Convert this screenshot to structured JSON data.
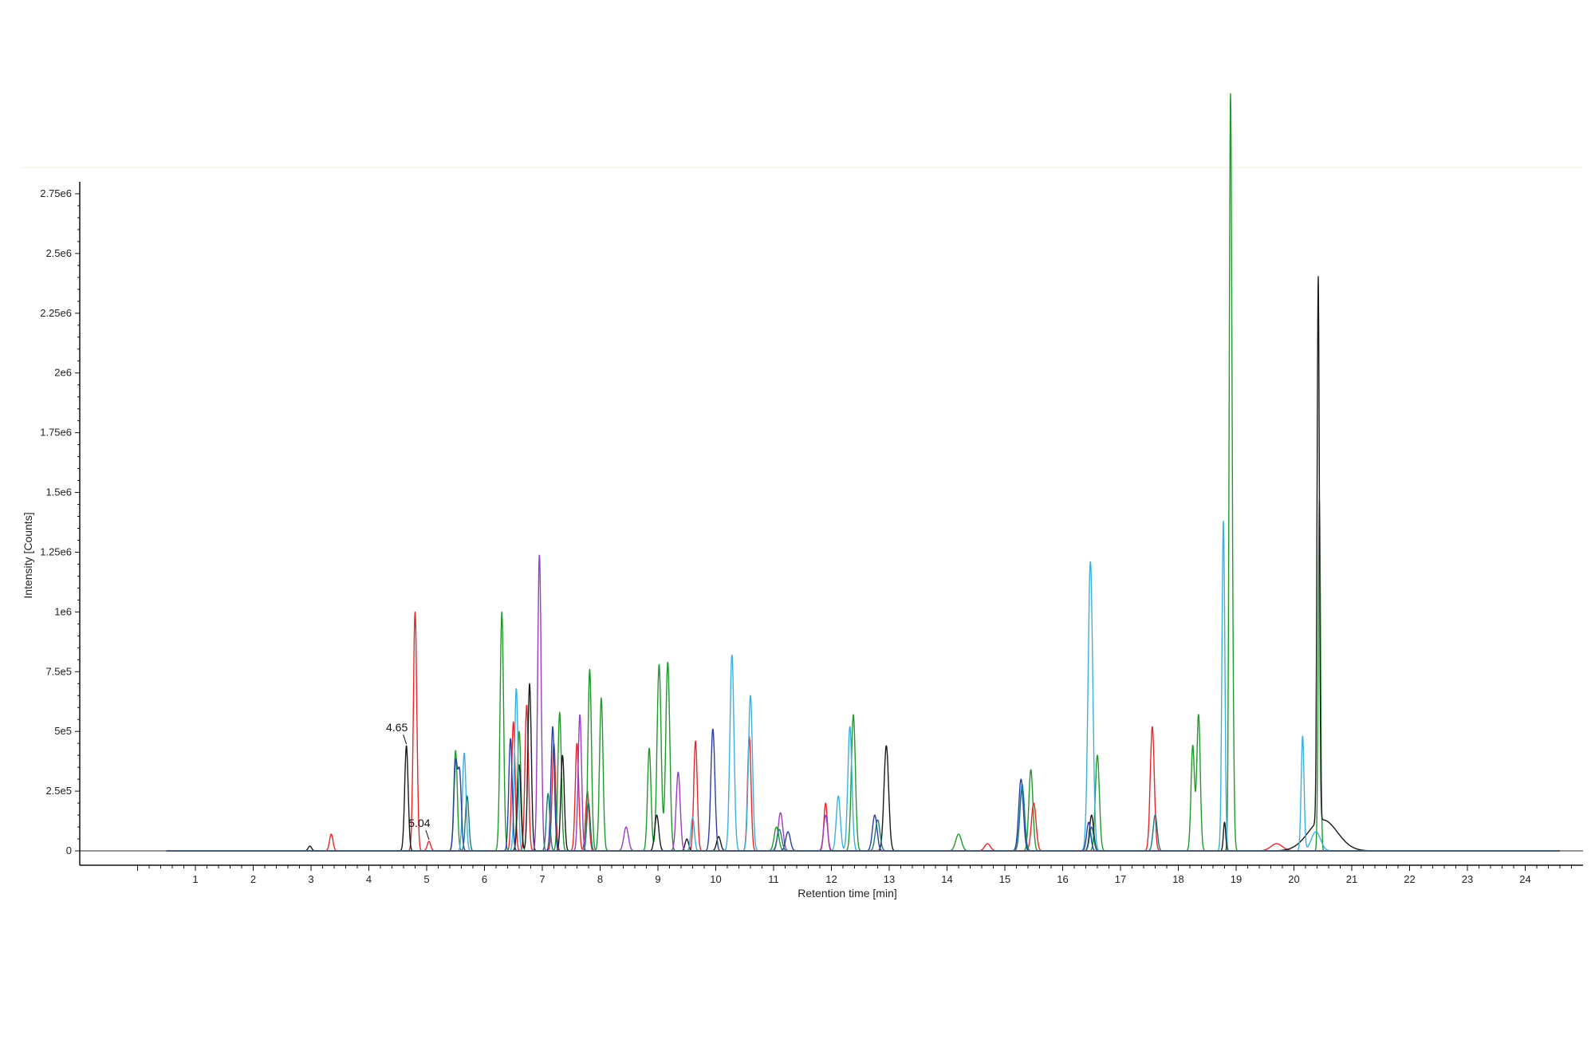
{
  "chart_data": {
    "type": "line",
    "xlabel": "Retention time [min]",
    "ylabel": "Intensity [Counts]",
    "xlim": [
      -1,
      25
    ],
    "ylim": [
      -60000,
      2800000
    ],
    "x_ticks": [
      1,
      2,
      3,
      4,
      5,
      6,
      7,
      8,
      9,
      10,
      11,
      12,
      13,
      14,
      15,
      16,
      17,
      18,
      19,
      20,
      21,
      22,
      23,
      24
    ],
    "x_tick_labels": [
      "1",
      "2",
      "3",
      "4",
      "5",
      "6",
      "7",
      "8",
      "9",
      "10",
      "11",
      "12",
      "13",
      "14",
      "15",
      "16",
      "17",
      "18",
      "19",
      "20",
      "21",
      "22",
      "23",
      "24"
    ],
    "y_ticks": [
      0,
      250000,
      500000,
      750000,
      1000000,
      1250000,
      1500000,
      1750000,
      2000000,
      2250000,
      2500000,
      2750000
    ],
    "y_tick_labels": [
      "0",
      "2.5e5",
      "5e5",
      "7.5e5",
      "1e6",
      "1.25e6",
      "1.5e6",
      "1.75e6",
      "2e6",
      "2.25e6",
      "2.5e6",
      "2.75e6"
    ],
    "grid": false,
    "legend": "none",
    "annotations": [
      {
        "text": "4.65",
        "x": 4.65,
        "y": 440000
      },
      {
        "text": "5.04",
        "x": 5.04,
        "y": 40000
      }
    ],
    "series": [
      {
        "color": "#e8262a",
        "peaks": [
          [
            3.35,
            70000,
            0.03
          ],
          [
            4.8,
            1000000,
            0.03
          ],
          [
            5.04,
            40000,
            0.03
          ],
          [
            6.5,
            540000,
            0.03
          ],
          [
            6.73,
            610000,
            0.03
          ],
          [
            7.2,
            450000,
            0.03
          ],
          [
            7.6,
            450000,
            0.03
          ],
          [
            7.78,
            250000,
            0.03
          ],
          [
            9.65,
            460000,
            0.03
          ],
          [
            10.58,
            480000,
            0.03
          ],
          [
            11.9,
            200000,
            0.03
          ],
          [
            14.7,
            30000,
            0.05
          ],
          [
            15.5,
            200000,
            0.04
          ],
          [
            17.55,
            520000,
            0.035
          ],
          [
            19.7,
            30000,
            0.1
          ]
        ]
      },
      {
        "color": "#1f9a2a",
        "peaks": [
          [
            5.5,
            420000,
            0.03
          ],
          [
            6.3,
            1000000,
            0.03
          ],
          [
            6.6,
            500000,
            0.03
          ],
          [
            7.3,
            580000,
            0.03
          ],
          [
            7.82,
            760000,
            0.03
          ],
          [
            8.02,
            640000,
            0.03
          ],
          [
            8.85,
            430000,
            0.03
          ],
          [
            9.02,
            780000,
            0.035
          ],
          [
            9.17,
            790000,
            0.035
          ],
          [
            11.05,
            100000,
            0.04
          ],
          [
            12.38,
            570000,
            0.035
          ],
          [
            14.2,
            70000,
            0.05
          ],
          [
            15.45,
            340000,
            0.035
          ],
          [
            16.6,
            400000,
            0.035
          ],
          [
            18.25,
            440000,
            0.03
          ],
          [
            18.35,
            570000,
            0.03
          ],
          [
            18.9,
            2730000,
            0.022
          ],
          [
            18.93,
            830000,
            0.025
          ],
          [
            20.44,
            1470000,
            0.02
          ]
        ]
      },
      {
        "color": "#1a1a1a",
        "peaks": [
          [
            2.98,
            20000,
            0.03
          ],
          [
            4.65,
            440000,
            0.03
          ],
          [
            6.6,
            360000,
            0.03
          ],
          [
            6.78,
            700000,
            0.03
          ],
          [
            7.35,
            400000,
            0.03
          ],
          [
            8.98,
            150000,
            0.035
          ],
          [
            9.5,
            50000,
            0.03
          ],
          [
            10.05,
            60000,
            0.035
          ],
          [
            12.95,
            440000,
            0.04
          ],
          [
            16.5,
            150000,
            0.035
          ],
          [
            18.8,
            120000,
            0.02
          ],
          [
            20.42,
            2280000,
            0.02
          ],
          [
            20.5,
            130000,
            0.25
          ]
        ]
      },
      {
        "color": "#3bb0e0",
        "peaks": [
          [
            5.65,
            410000,
            0.03
          ],
          [
            6.55,
            680000,
            0.03
          ],
          [
            9.6,
            140000,
            0.03
          ],
          [
            10.28,
            820000,
            0.035
          ],
          [
            10.6,
            650000,
            0.035
          ],
          [
            12.12,
            230000,
            0.035
          ],
          [
            12.32,
            520000,
            0.035
          ],
          [
            15.3,
            280000,
            0.04
          ],
          [
            16.48,
            1210000,
            0.04
          ],
          [
            18.78,
            1380000,
            0.025
          ],
          [
            20.15,
            480000,
            0.025
          ],
          [
            20.38,
            80000,
            0.08
          ]
        ]
      },
      {
        "color": "#9b3cc4",
        "peaks": [
          [
            6.95,
            1240000,
            0.03
          ],
          [
            7.65,
            570000,
            0.03
          ],
          [
            8.45,
            100000,
            0.04
          ],
          [
            9.35,
            330000,
            0.035
          ],
          [
            11.12,
            160000,
            0.04
          ],
          [
            11.9,
            150000,
            0.035
          ]
        ]
      },
      {
        "color": "#2c3ea8",
        "peaks": [
          [
            5.5,
            360000,
            0.03
          ],
          [
            5.57,
            320000,
            0.03
          ],
          [
            6.45,
            470000,
            0.03
          ],
          [
            7.18,
            520000,
            0.03
          ],
          [
            9.95,
            510000,
            0.035
          ],
          [
            11.25,
            80000,
            0.04
          ],
          [
            12.75,
            150000,
            0.04
          ],
          [
            15.28,
            300000,
            0.04
          ],
          [
            16.45,
            120000,
            0.035
          ]
        ]
      },
      {
        "color": "#1b7a7a",
        "peaks": [
          [
            5.7,
            230000,
            0.03
          ],
          [
            7.1,
            240000,
            0.03
          ],
          [
            7.8,
            200000,
            0.03
          ],
          [
            11.1,
            90000,
            0.04
          ],
          [
            12.8,
            130000,
            0.04
          ],
          [
            15.3,
            260000,
            0.04
          ],
          [
            16.5,
            100000,
            0.035
          ],
          [
            17.6,
            150000,
            0.035
          ]
        ]
      }
    ]
  }
}
